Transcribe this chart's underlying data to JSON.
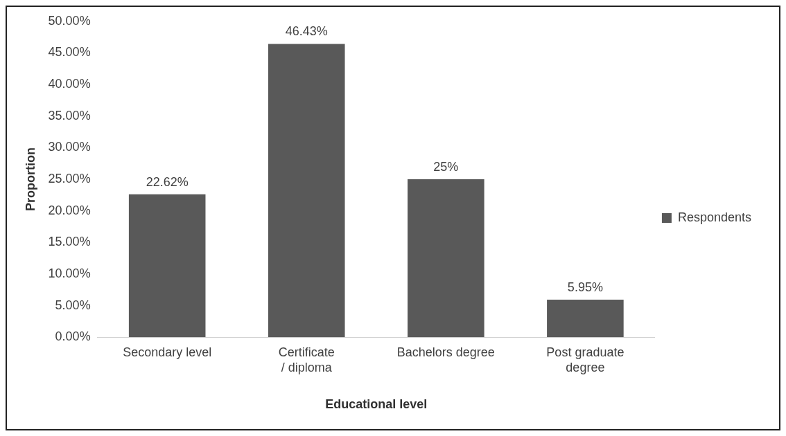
{
  "chart_data": {
    "type": "bar",
    "xlabel": "Educational level",
    "ylabel": "Proportion",
    "categories": [
      "Secondary level",
      "Certificate / diploma",
      "Bachelors degree",
      "Post graduate degree"
    ],
    "series": [
      {
        "name": "Respondents",
        "color": "#595959",
        "values": [
          22.62,
          46.43,
          25,
          5.95
        ]
      }
    ],
    "value_labels": [
      "22.62%",
      "46.43%",
      "25%",
      "5.95%"
    ],
    "ylim": [
      0,
      50
    ],
    "yticks": [
      {
        "value": 0,
        "label": "0.00%"
      },
      {
        "value": 5,
        "label": "5.00%"
      },
      {
        "value": 10,
        "label": "10.00%"
      },
      {
        "value": 15,
        "label": "15.00%"
      },
      {
        "value": 20,
        "label": "20.00%"
      },
      {
        "value": 25,
        "label": "25.00%"
      },
      {
        "value": 30,
        "label": "30.00%"
      },
      {
        "value": 35,
        "label": "35.00%"
      },
      {
        "value": 40,
        "label": "40.00%"
      },
      {
        "value": 45,
        "label": "45.00%"
      },
      {
        "value": 50,
        "label": "50.00%"
      }
    ],
    "grid": false,
    "legend": "right"
  }
}
